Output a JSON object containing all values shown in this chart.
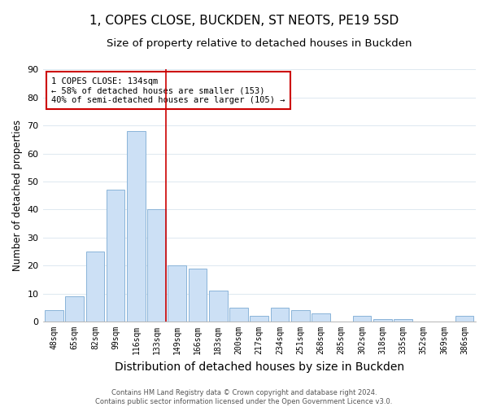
{
  "title": "1, COPES CLOSE, BUCKDEN, ST NEOTS, PE19 5SD",
  "subtitle": "Size of property relative to detached houses in Buckden",
  "bar_labels": [
    "48sqm",
    "65sqm",
    "82sqm",
    "99sqm",
    "116sqm",
    "133sqm",
    "149sqm",
    "166sqm",
    "183sqm",
    "200sqm",
    "217sqm",
    "234sqm",
    "251sqm",
    "268sqm",
    "285sqm",
    "302sqm",
    "318sqm",
    "335sqm",
    "352sqm",
    "369sqm",
    "386sqm"
  ],
  "bar_values": [
    4,
    9,
    25,
    47,
    68,
    40,
    20,
    19,
    11,
    5,
    2,
    5,
    4,
    3,
    0,
    2,
    1,
    1,
    0,
    0,
    2
  ],
  "bar_color": "#cce0f5",
  "bar_edge_color": "#8ab4d8",
  "highlight_bar_index": 5,
  "highlight_line_color": "#cc0000",
  "xlabel": "Distribution of detached houses by size in Buckden",
  "ylabel": "Number of detached properties",
  "ylim": [
    0,
    90
  ],
  "yticks": [
    0,
    10,
    20,
    30,
    40,
    50,
    60,
    70,
    80,
    90
  ],
  "annotation_title": "1 COPES CLOSE: 134sqm",
  "annotation_line1": "← 58% of detached houses are smaller (153)",
  "annotation_line2": "40% of semi-detached houses are larger (105) →",
  "footer_line1": "Contains HM Land Registry data © Crown copyright and database right 2024.",
  "footer_line2": "Contains public sector information licensed under the Open Government Licence v3.0.",
  "title_fontsize": 11,
  "subtitle_fontsize": 9.5,
  "xlabel_fontsize": 10,
  "ylabel_fontsize": 8.5,
  "background_color": "#ffffff",
  "grid_color": "#dde8f0"
}
